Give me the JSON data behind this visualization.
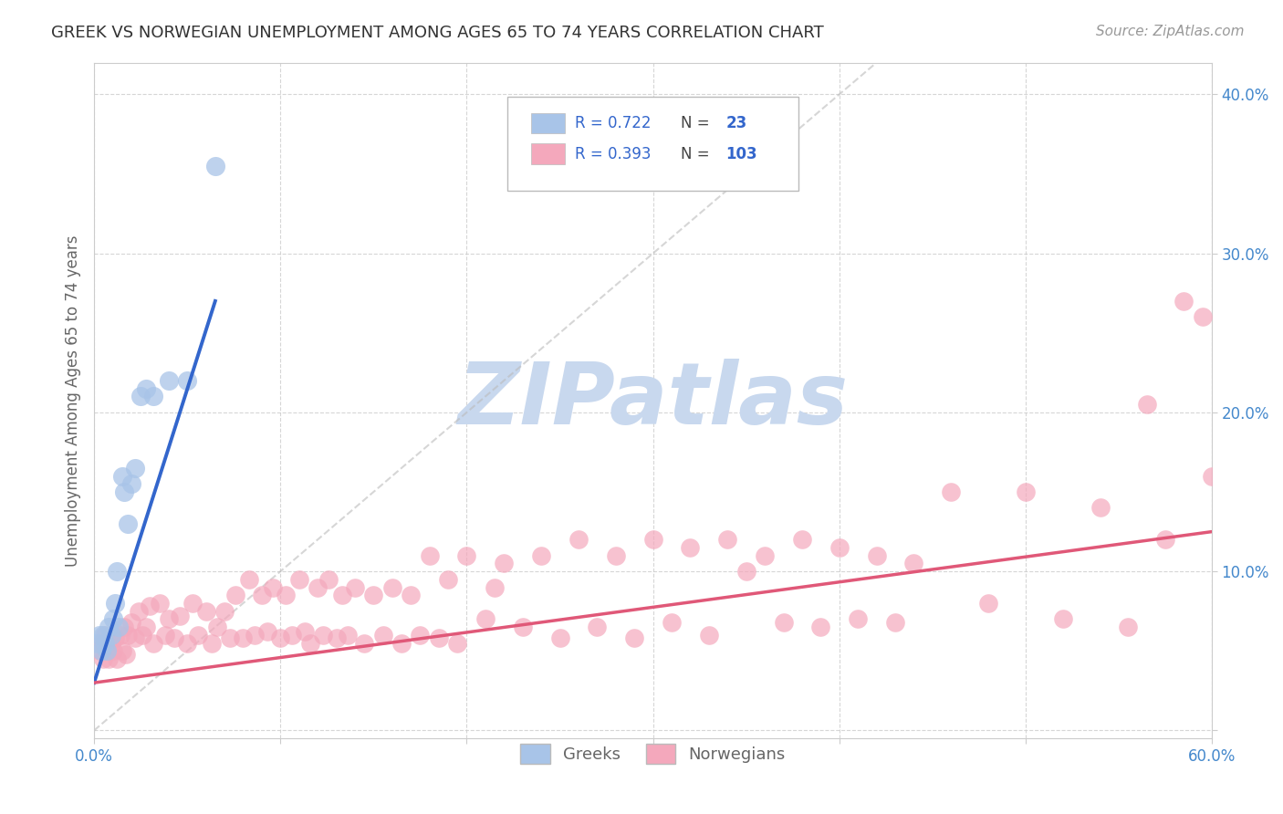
{
  "title": "GREEK VS NORWEGIAN UNEMPLOYMENT AMONG AGES 65 TO 74 YEARS CORRELATION CHART",
  "source": "Source: ZipAtlas.com",
  "ylabel": "Unemployment Among Ages 65 to 74 years",
  "xlim": [
    0.0,
    0.6
  ],
  "ylim": [
    -0.005,
    0.42
  ],
  "x_ticks": [
    0.0,
    0.1,
    0.2,
    0.3,
    0.4,
    0.5,
    0.6
  ],
  "x_tick_labels_show": [
    "0.0%",
    "",
    "",
    "",
    "",
    "",
    "60.0%"
  ],
  "y_ticks": [
    0.0,
    0.1,
    0.2,
    0.3,
    0.4
  ],
  "y_tick_labels": [
    "",
    "10.0%",
    "20.0%",
    "30.0%",
    "40.0%"
  ],
  "greek_R": 0.722,
  "greek_N": 23,
  "norwegian_R": 0.393,
  "norwegian_N": 103,
  "greek_color": "#A8C4E8",
  "norwegian_color": "#F4A8BC",
  "greek_line_color": "#3366CC",
  "norwegian_line_color": "#E05878",
  "watermark_color": "#C8D8EE",
  "background_color": "#FFFFFF",
  "grid_color": "#CCCCCC",
  "title_color": "#333333",
  "axis_label_color": "#666666",
  "tick_color": "#4488CC",
  "legend_text_color": "#3366CC",
  "greek_x": [
    0.002,
    0.003,
    0.004,
    0.005,
    0.006,
    0.007,
    0.008,
    0.009,
    0.01,
    0.011,
    0.012,
    0.013,
    0.015,
    0.016,
    0.018,
    0.02,
    0.022,
    0.025,
    0.028,
    0.032,
    0.04,
    0.05,
    0.065
  ],
  "greek_y": [
    0.055,
    0.06,
    0.05,
    0.06,
    0.055,
    0.05,
    0.065,
    0.06,
    0.07,
    0.08,
    0.1,
    0.065,
    0.16,
    0.15,
    0.13,
    0.155,
    0.165,
    0.21,
    0.215,
    0.21,
    0.22,
    0.22,
    0.355
  ],
  "norwegian_x": [
    0.003,
    0.004,
    0.005,
    0.006,
    0.007,
    0.008,
    0.009,
    0.01,
    0.011,
    0.012,
    0.014,
    0.015,
    0.016,
    0.017,
    0.018,
    0.02,
    0.022,
    0.024,
    0.026,
    0.028,
    0.03,
    0.032,
    0.035,
    0.038,
    0.04,
    0.043,
    0.046,
    0.05,
    0.053,
    0.056,
    0.06,
    0.063,
    0.066,
    0.07,
    0.073,
    0.076,
    0.08,
    0.083,
    0.086,
    0.09,
    0.093,
    0.096,
    0.1,
    0.103,
    0.106,
    0.11,
    0.113,
    0.116,
    0.12,
    0.123,
    0.126,
    0.13,
    0.133,
    0.136,
    0.14,
    0.145,
    0.15,
    0.155,
    0.16,
    0.165,
    0.17,
    0.175,
    0.18,
    0.185,
    0.19,
    0.195,
    0.2,
    0.21,
    0.215,
    0.22,
    0.23,
    0.24,
    0.25,
    0.26,
    0.27,
    0.28,
    0.29,
    0.3,
    0.31,
    0.32,
    0.33,
    0.34,
    0.35,
    0.36,
    0.37,
    0.38,
    0.39,
    0.4,
    0.41,
    0.42,
    0.43,
    0.44,
    0.46,
    0.48,
    0.5,
    0.52,
    0.54,
    0.555,
    0.565,
    0.575,
    0.585,
    0.595,
    0.6
  ],
  "norwegian_y": [
    0.05,
    0.055,
    0.045,
    0.06,
    0.05,
    0.045,
    0.055,
    0.05,
    0.058,
    0.045,
    0.06,
    0.05,
    0.065,
    0.048,
    0.06,
    0.068,
    0.058,
    0.075,
    0.06,
    0.065,
    0.078,
    0.055,
    0.08,
    0.06,
    0.07,
    0.058,
    0.072,
    0.055,
    0.08,
    0.06,
    0.075,
    0.055,
    0.065,
    0.075,
    0.058,
    0.085,
    0.058,
    0.095,
    0.06,
    0.085,
    0.062,
    0.09,
    0.058,
    0.085,
    0.06,
    0.095,
    0.062,
    0.055,
    0.09,
    0.06,
    0.095,
    0.058,
    0.085,
    0.06,
    0.09,
    0.055,
    0.085,
    0.06,
    0.09,
    0.055,
    0.085,
    0.06,
    0.11,
    0.058,
    0.095,
    0.055,
    0.11,
    0.07,
    0.09,
    0.105,
    0.065,
    0.11,
    0.058,
    0.12,
    0.065,
    0.11,
    0.058,
    0.12,
    0.068,
    0.115,
    0.06,
    0.12,
    0.1,
    0.11,
    0.068,
    0.12,
    0.065,
    0.115,
    0.07,
    0.11,
    0.068,
    0.105,
    0.15,
    0.08,
    0.15,
    0.07,
    0.14,
    0.065,
    0.205,
    0.12,
    0.27,
    0.26,
    0.16
  ],
  "greek_line_x": [
    0.0,
    0.065
  ],
  "greek_line_y": [
    0.03,
    0.27
  ],
  "norwegian_line_x": [
    0.0,
    0.6
  ],
  "norwegian_line_y": [
    0.03,
    0.125
  ],
  "diag_line_x": [
    0.0,
    0.42
  ],
  "diag_line_y": [
    0.0,
    0.42
  ]
}
